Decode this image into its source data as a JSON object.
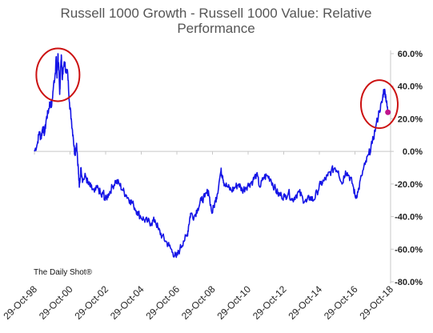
{
  "chart_data": {
    "type": "line",
    "title_line1": "Russell 1000 Growth - Russell 1000 Value:   Relative",
    "title_line2": "Performance",
    "xlabel": "",
    "ylabel": "",
    "ylim": [
      -80,
      60
    ],
    "y_ticks": [
      "60.0%",
      "40.0%",
      "20.0%",
      "0.0%",
      "-20.0%",
      "-40.0%",
      "-60.0%",
      "-80.0%"
    ],
    "x_ticks": [
      "29-Oct-98",
      "29-Oct-00",
      "29-Oct-02",
      "29-Oct-04",
      "29-Oct-06",
      "29-Oct-08",
      "29-Oct-10",
      "29-Oct-12",
      "29-Oct-14",
      "29-Oct-16",
      "29-Oct-18"
    ],
    "source": "The Daily Shot®",
    "colors": {
      "line": "#1414e6",
      "circle": "#cc1111",
      "marker": "#c0148c",
      "axis": "#c8c8c8"
    },
    "series": [
      {
        "values": [
          [
            1998.83,
            0
          ],
          [
            1999.0,
            5
          ],
          [
            1999.1,
            12
          ],
          [
            1999.2,
            8
          ],
          [
            1999.3,
            15
          ],
          [
            1999.4,
            11
          ],
          [
            1999.5,
            20
          ],
          [
            1999.6,
            24
          ],
          [
            1999.7,
            30
          ],
          [
            1999.8,
            28
          ],
          [
            1999.9,
            40
          ],
          [
            2000.0,
            48
          ],
          [
            2000.05,
            58
          ],
          [
            2000.1,
            45
          ],
          [
            2000.15,
            60
          ],
          [
            2000.2,
            50
          ],
          [
            2000.25,
            35
          ],
          [
            2000.3,
            52
          ],
          [
            2000.35,
            58
          ],
          [
            2000.4,
            44
          ],
          [
            2000.5,
            55
          ],
          [
            2000.6,
            50
          ],
          [
            2000.7,
            48
          ],
          [
            2000.8,
            30
          ],
          [
            2000.9,
            20
          ],
          [
            2001.0,
            10
          ],
          [
            2001.1,
            -2
          ],
          [
            2001.2,
            5
          ],
          [
            2001.3,
            -12
          ],
          [
            2001.35,
            -22
          ],
          [
            2001.45,
            -10
          ],
          [
            2001.55,
            -18
          ],
          [
            2001.7,
            -15
          ],
          [
            2001.85,
            -20
          ],
          [
            2002.0,
            -22
          ],
          [
            2002.2,
            -25
          ],
          [
            2002.4,
            -22
          ],
          [
            2002.6,
            -28
          ],
          [
            2002.7,
            -25
          ],
          [
            2002.8,
            -30
          ],
          [
            2003.0,
            -26
          ],
          [
            2003.2,
            -22
          ],
          [
            2003.4,
            -18
          ],
          [
            2003.6,
            -20
          ],
          [
            2003.8,
            -24
          ],
          [
            2004.0,
            -27
          ],
          [
            2004.2,
            -30
          ],
          [
            2004.4,
            -33
          ],
          [
            2004.6,
            -37
          ],
          [
            2004.8,
            -40
          ],
          [
            2005.0,
            -42
          ],
          [
            2005.2,
            -43
          ],
          [
            2005.4,
            -44
          ],
          [
            2005.6,
            -42
          ],
          [
            2005.8,
            -48
          ],
          [
            2006.0,
            -52
          ],
          [
            2006.2,
            -55
          ],
          [
            2006.4,
            -58
          ],
          [
            2006.6,
            -62
          ],
          [
            2006.8,
            -65
          ],
          [
            2007.0,
            -60
          ],
          [
            2007.2,
            -55
          ],
          [
            2007.4,
            -52
          ],
          [
            2007.5,
            -45
          ],
          [
            2007.6,
            -38
          ],
          [
            2007.8,
            -40
          ],
          [
            2008.0,
            -35
          ],
          [
            2008.2,
            -30
          ],
          [
            2008.4,
            -28
          ],
          [
            2008.6,
            -24
          ],
          [
            2008.8,
            -38
          ],
          [
            2009.0,
            -30
          ],
          [
            2009.1,
            -26
          ],
          [
            2009.3,
            -12
          ],
          [
            2009.4,
            -15
          ],
          [
            2009.5,
            -20
          ],
          [
            2009.7,
            -22
          ],
          [
            2009.9,
            -24
          ],
          [
            2010.1,
            -22
          ],
          [
            2010.3,
            -20
          ],
          [
            2010.5,
            -24
          ],
          [
            2010.7,
            -22
          ],
          [
            2010.9,
            -20
          ],
          [
            2011.1,
            -18
          ],
          [
            2011.3,
            -14
          ],
          [
            2011.5,
            -22
          ],
          [
            2011.7,
            -16
          ],
          [
            2011.9,
            -15
          ],
          [
            2012.1,
            -17
          ],
          [
            2012.3,
            -22
          ],
          [
            2012.5,
            -26
          ],
          [
            2012.7,
            -27
          ],
          [
            2012.9,
            -28
          ],
          [
            2013.1,
            -25
          ],
          [
            2013.3,
            -30
          ],
          [
            2013.5,
            -27
          ],
          [
            2013.7,
            -25
          ],
          [
            2013.9,
            -29
          ],
          [
            2014.1,
            -31
          ],
          [
            2014.3,
            -28
          ],
          [
            2014.5,
            -30
          ],
          [
            2014.7,
            -25
          ],
          [
            2014.9,
            -20
          ],
          [
            2015.1,
            -18
          ],
          [
            2015.3,
            -15
          ],
          [
            2015.5,
            -12
          ],
          [
            2015.7,
            -10
          ],
          [
            2015.9,
            -12
          ],
          [
            2016.1,
            -20
          ],
          [
            2016.3,
            -12
          ],
          [
            2016.5,
            -15
          ],
          [
            2016.7,
            -20
          ],
          [
            2016.85,
            -28
          ],
          [
            2017.0,
            -25
          ],
          [
            2017.2,
            -15
          ],
          [
            2017.4,
            -8
          ],
          [
            2017.6,
            -2
          ],
          [
            2017.8,
            5
          ],
          [
            2018.0,
            15
          ],
          [
            2018.2,
            25
          ],
          [
            2018.35,
            30
          ],
          [
            2018.45,
            38
          ],
          [
            2018.55,
            35
          ],
          [
            2018.6,
            30
          ],
          [
            2018.68,
            24
          ]
        ]
      }
    ],
    "highlights": [
      {
        "label": "",
        "x": 2000.15,
        "y": 47
      },
      {
        "label": "",
        "x": 2018.2,
        "y": 29
      }
    ],
    "last_point": {
      "x": 2018.68,
      "y": 24
    }
  }
}
